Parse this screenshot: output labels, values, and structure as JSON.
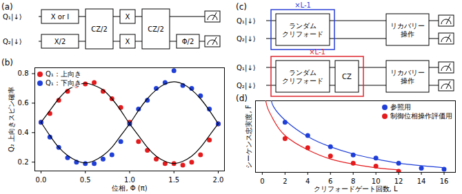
{
  "panels": {
    "a": "(a)",
    "b": "(b)",
    "c": "(c)",
    "d": "(d)"
  },
  "diagram_a": {
    "qubits": [
      "Q₁|↓⟩",
      "Q₂|↓⟩"
    ],
    "steps": [
      [
        {
          "label": "X or I",
          "qubits": [
            1
          ]
        },
        {
          "label": "X/2",
          "qubits": [
            2
          ]
        }
      ],
      [
        {
          "label": "CZ/2",
          "qubits": [
            1,
            2
          ]
        }
      ],
      [
        {
          "label": "X",
          "qubits": [
            1
          ]
        },
        {
          "label": "X",
          "qubits": [
            2
          ]
        }
      ],
      [
        {
          "label": "CZ/2",
          "qubits": [
            1,
            2
          ]
        }
      ],
      [
        {
          "label": "Φ/2",
          "qubits": [
            2
          ]
        }
      ]
    ]
  },
  "diagram_c": {
    "circuits": [
      {
        "repeat": "×L-1",
        "color": "#2a3fd6",
        "qubits": [
          "Q₁|↓⟩",
          "Q₂|↓⟩"
        ],
        "steps": [
          [
            "ランダム",
            "クリフォード"
          ]
        ],
        "recovery": [
          "リカバリー",
          "操作"
        ]
      },
      {
        "repeat": "×L-1",
        "color": "#e0242c",
        "qubits": [
          "Q₁|↓⟩",
          "Q₂|↓⟩"
        ],
        "steps": [
          [
            "ランダム",
            "クリフォード"
          ],
          [
            "CZ"
          ]
        ],
        "recovery": [
          "リカバリー",
          "操作"
        ]
      }
    ]
  },
  "chart_data": [
    {
      "type": "scatter",
      "x_label": "位相, Φ (π)",
      "y_label": "Q₂ 上向きスピン確率",
      "x": [
        0.0,
        0.1,
        0.2,
        0.3,
        0.4,
        0.5,
        0.6,
        0.7,
        0.8,
        0.9,
        1.0,
        1.1,
        1.2,
        1.3,
        1.4,
        1.5,
        1.6,
        1.7,
        1.8,
        1.9,
        2.0
      ],
      "series": [
        {
          "name": "Q₁：上向き",
          "color": "#e41a1c",
          "type": "scatter",
          "marker": "circle",
          "values": [
            0.47,
            0.53,
            0.62,
            0.68,
            0.72,
            0.73,
            0.74,
            0.68,
            0.63,
            0.57,
            0.47,
            0.34,
            0.28,
            0.22,
            0.19,
            0.19,
            0.18,
            0.2,
            0.25,
            0.35,
            0.46
          ]
        },
        {
          "name": "Q₁：下向き",
          "color": "#1f3fd8",
          "type": "scatter",
          "marker": "circle",
          "values": [
            0.47,
            0.37,
            0.3,
            0.23,
            0.2,
            0.19,
            0.19,
            0.22,
            0.25,
            0.34,
            0.46,
            0.56,
            0.62,
            0.7,
            0.74,
            0.82,
            0.72,
            0.7,
            0.65,
            0.56,
            0.46
          ]
        },
        {
          "color": "#000000",
          "type": "line",
          "line_style": "solid",
          "values": [
            0.47,
            0.55,
            0.63,
            0.69,
            0.72,
            0.735,
            0.72,
            0.69,
            0.63,
            0.55,
            0.46,
            0.38,
            0.3,
            0.24,
            0.205,
            0.19,
            0.205,
            0.24,
            0.3,
            0.38,
            0.46
          ]
        },
        {
          "color": "#000000",
          "type": "line",
          "line_style": "solid",
          "values": [
            0.47,
            0.38,
            0.3,
            0.245,
            0.21,
            0.195,
            0.21,
            0.245,
            0.3,
            0.38,
            0.46,
            0.55,
            0.63,
            0.69,
            0.73,
            0.745,
            0.73,
            0.69,
            0.63,
            0.55,
            0.46
          ]
        }
      ],
      "xlim": [
        -0.07,
        2.07
      ],
      "xticks": [
        {
          "value": 0,
          "label": "0.0"
        },
        {
          "value": 0.5,
          "label": "0.5"
        },
        {
          "value": 1,
          "label": "1.0"
        },
        {
          "value": 1.5,
          "label": "1.5"
        },
        {
          "value": 2,
          "label": "2.0"
        }
      ],
      "ylim": [
        0.14,
        0.84
      ],
      "yticks": [
        0.2,
        0.4,
        0.6,
        0.8
      ],
      "grid": false,
      "legend": "top-left"
    },
    {
      "type": "scatter",
      "x_label": "クリフォードゲート回数, L",
      "y_label": "シーケンス忠実度, F",
      "series": [
        {
          "name": "参照用",
          "color": "#1f3fd8",
          "type": "scatter",
          "marker": "circle",
          "x": [
            2,
            4,
            6,
            8,
            10,
            12,
            14,
            16
          ],
          "values": [
            0.49,
            0.36,
            0.25,
            0.17,
            0.14,
            0.09,
            0.04,
            0.03
          ]
        },
        {
          "name": "制御位相操作評価用",
          "color": "#e41a1c",
          "type": "scatter",
          "marker": "circle",
          "x": [
            2,
            4,
            6,
            8,
            10,
            12
          ],
          "values": [
            0.33,
            0.24,
            0.16,
            0.09,
            0.06,
            0.01
          ]
        },
        {
          "color": "#1f3fd8",
          "type": "line",
          "line_style": "solid",
          "x": [
            0.8,
            1,
            2,
            4,
            6,
            8,
            10,
            12,
            14,
            16
          ],
          "values": [
            0.7,
            0.64,
            0.51,
            0.35,
            0.25,
            0.18,
            0.13,
            0.09,
            0.065,
            0.045
          ]
        },
        {
          "color": "#e41a1c",
          "type": "line",
          "line_style": "solid",
          "x": [
            0.3,
            0.5,
            1,
            2,
            4,
            6,
            8,
            10,
            12
          ],
          "values": [
            0.7,
            0.62,
            0.51,
            0.36,
            0.22,
            0.13,
            0.08,
            0.045,
            0.025
          ]
        }
      ],
      "xlim": [
        -0.6,
        17
      ],
      "xticks": [
        0,
        2,
        4,
        6,
        8,
        10,
        12,
        14,
        16
      ],
      "ylim": [
        0,
        0.7
      ],
      "yticks": [],
      "tick_labels": "x",
      "grid": false,
      "legend": "top-right"
    }
  ]
}
